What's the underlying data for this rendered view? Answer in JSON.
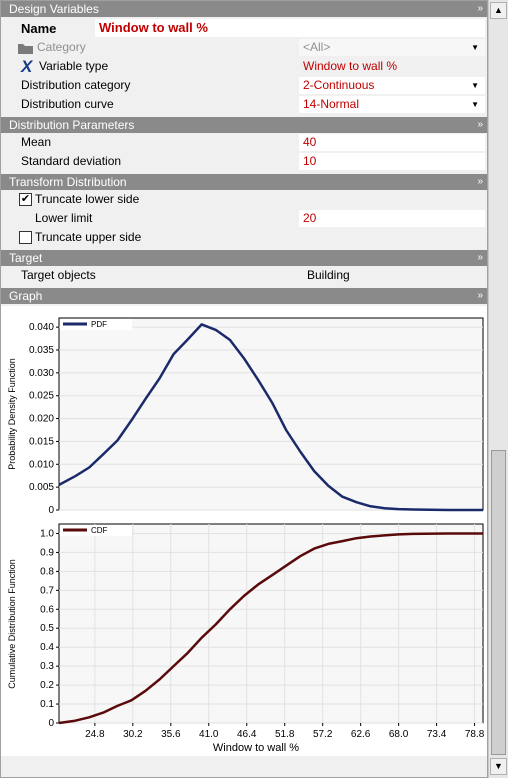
{
  "sections": {
    "design_variables": "Design Variables",
    "distribution_parameters": "Distribution Parameters",
    "transform_distribution": "Transform Distribution",
    "target": "Target",
    "graph": "Graph"
  },
  "design": {
    "name_label": "Name",
    "name_value": "Window to wall %",
    "category_label": "Category",
    "category_value": "<All>",
    "variable_type_label": "Variable type",
    "variable_type_value": "Window to wall %",
    "dist_category_label": "Distribution category",
    "dist_category_value": "2-Continuous",
    "dist_curve_label": "Distribution curve",
    "dist_curve_value": "14-Normal"
  },
  "params": {
    "mean_label": "Mean",
    "mean_value": "40",
    "sd_label": "Standard deviation",
    "sd_value": "10"
  },
  "transform": {
    "truncate_lower_label": "Truncate lower side",
    "truncate_lower_checked": true,
    "check_mark": "✔",
    "lower_limit_label": "Lower limit",
    "lower_limit_value": "20",
    "truncate_upper_label": "Truncate upper side",
    "truncate_upper_checked": false
  },
  "target": {
    "objects_label": "Target objects",
    "objects_value": "Building"
  },
  "icons": {
    "chevron": "»",
    "dropdown": "▼",
    "scroll_up": "▲",
    "scroll_down": "▼"
  },
  "chart_data": [
    {
      "type": "line",
      "legend": "PDF",
      "ylabel": "Probability Density Function",
      "color": "#1a2a6a",
      "ylim": [
        0,
        0.042
      ],
      "yticks": [
        "0",
        "0.005",
        "0.010",
        "0.015",
        "0.020",
        "0.025",
        "0.030",
        "0.035",
        "0.040"
      ],
      "xlim": [
        19.7,
        80
      ],
      "x": [
        19.7,
        22,
        24,
        26,
        28,
        30,
        32,
        34,
        36,
        38,
        40,
        42,
        44,
        46,
        48,
        50,
        52,
        54,
        56,
        58,
        60,
        62,
        64,
        66,
        68,
        70,
        75,
        80
      ],
      "y": [
        0.0055,
        0.0074,
        0.0093,
        0.0122,
        0.0152,
        0.0196,
        0.0243,
        0.0288,
        0.0341,
        0.0373,
        0.0406,
        0.0394,
        0.0372,
        0.0332,
        0.0285,
        0.0235,
        0.0175,
        0.0128,
        0.0085,
        0.0053,
        0.0029,
        0.0017,
        0.0008,
        0.0004,
        0.0002,
        0.0001,
        0.0,
        0.0
      ]
    },
    {
      "type": "line",
      "legend": "CDF",
      "ylabel": "Cumulative Distribution Function",
      "xlabel": "Window to wall %",
      "color": "#5a0a0a",
      "ylim": [
        0,
        1.05
      ],
      "yticks": [
        "0",
        "0.1",
        "0.2",
        "0.3",
        "0.4",
        "0.5",
        "0.6",
        "0.7",
        "0.8",
        "0.9",
        "1.0"
      ],
      "xlim": [
        19.7,
        80
      ],
      "xticks": [
        "24.8",
        "30.2",
        "35.6",
        "41.0",
        "46.4",
        "51.8",
        "57.2",
        "62.6",
        "68.0",
        "73.4",
        "78.8"
      ],
      "x": [
        19.7,
        22,
        24,
        26,
        28,
        30,
        32,
        34,
        36,
        38,
        40,
        42,
        44,
        46,
        48,
        50,
        52,
        54,
        56,
        58,
        60,
        62,
        64,
        66,
        68,
        70,
        75,
        80
      ],
      "y": [
        0.0,
        0.012,
        0.03,
        0.055,
        0.09,
        0.12,
        0.17,
        0.23,
        0.3,
        0.37,
        0.45,
        0.52,
        0.6,
        0.67,
        0.73,
        0.78,
        0.83,
        0.88,
        0.92,
        0.945,
        0.96,
        0.975,
        0.984,
        0.99,
        0.995,
        0.998,
        1.0,
        1.0
      ]
    }
  ]
}
